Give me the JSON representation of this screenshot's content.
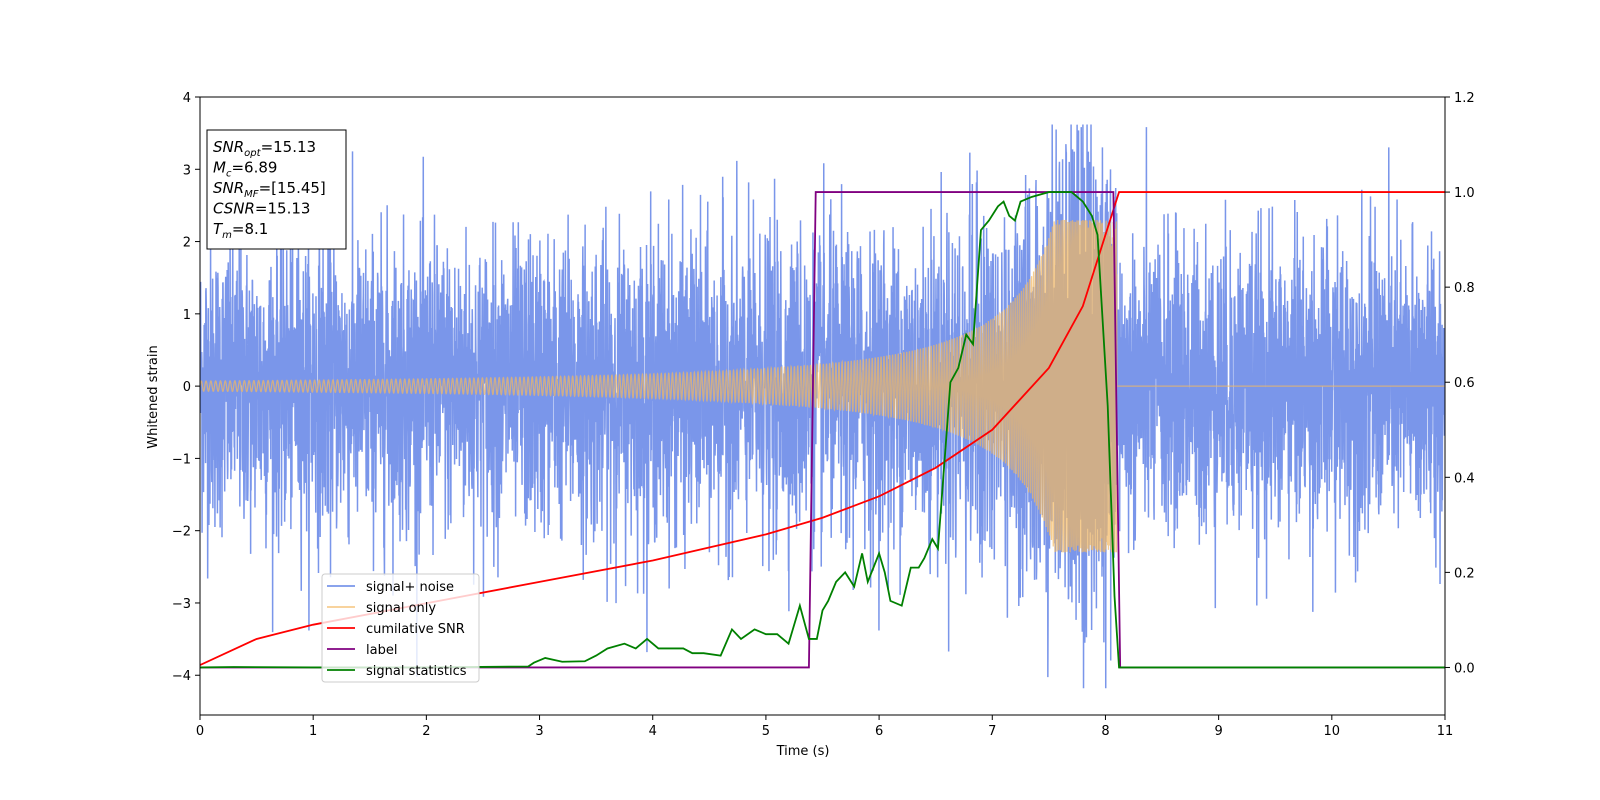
{
  "chart_data": {
    "type": "line",
    "xlabel": "Time (s)",
    "ylabel": "Whitened strain",
    "xlim": [
      0,
      11
    ],
    "ylim": [
      -4.55,
      4
    ],
    "y2lim": [
      -0.1,
      1.2
    ],
    "x_ticks": [
      0,
      1,
      2,
      3,
      4,
      5,
      6,
      7,
      8,
      9,
      10,
      11
    ],
    "y_ticks": [
      -4,
      -3,
      -2,
      -1,
      0,
      1,
      2,
      3,
      4
    ],
    "y2_ticks": [
      "0.0",
      "0.2",
      "0.4",
      "0.6",
      "0.8",
      "1.0",
      "1.2"
    ],
    "grid": false,
    "legend_position": "lower-left",
    "info_box": {
      "position": "top-left",
      "lines": [
        {
          "main": "SNR",
          "sub": "opt",
          "rest": "=15.13"
        },
        {
          "main": "M",
          "sub": "c",
          "rest": "=6.89"
        },
        {
          "main": "SNR",
          "sub": "MF",
          "rest": "=[15.45]"
        },
        {
          "main": "CSNR",
          "sub": "",
          "rest": "=15.13"
        },
        {
          "main": "T",
          "sub": "m",
          "rest": "=8.1"
        }
      ]
    },
    "series": [
      {
        "name": "signal+ noise",
        "axis": "left",
        "color": "#4169e1",
        "kind": "noise_plus_signal",
        "noise_sigma": 1.0,
        "envelope_max": 3.62,
        "envelope_min": -4.18
      },
      {
        "name": "signal only",
        "axis": "left",
        "color": "#f4b860",
        "kind": "chirp",
        "amplitude_start": 0.07,
        "amplitude_peak": 2.3,
        "merger_time": 8.1,
        "end_value": 0.0
      },
      {
        "name": "cumilative SNR",
        "axis": "right",
        "color": "#ff0000",
        "x": [
          0,
          0.5,
          1,
          2,
          3,
          4,
          5,
          5.5,
          6,
          6.5,
          7,
          7.5,
          7.8,
          8.0,
          8.1,
          8.12,
          11
        ],
        "y": [
          0.005,
          0.06,
          0.09,
          0.135,
          0.18,
          0.225,
          0.28,
          0.315,
          0.36,
          0.42,
          0.5,
          0.63,
          0.76,
          0.91,
          0.985,
          1.0,
          1.0
        ]
      },
      {
        "name": "label",
        "axis": "right",
        "color": "#800080",
        "x": [
          0,
          5.38,
          5.44,
          8.07,
          8.13,
          11
        ],
        "y": [
          0,
          0,
          1,
          1,
          0,
          0
        ]
      },
      {
        "name": "signal statistics",
        "axis": "right",
        "color": "#008000",
        "x": [
          0,
          0.3,
          1,
          2,
          2.9,
          2.95,
          3.05,
          3.2,
          3.4,
          3.5,
          3.6,
          3.75,
          3.85,
          3.95,
          4.05,
          4.2,
          4.27,
          4.35,
          4.45,
          4.6,
          4.7,
          4.78,
          4.9,
          5.0,
          5.1,
          5.2,
          5.3,
          5.38,
          5.45,
          5.5,
          5.55,
          5.62,
          5.7,
          5.78,
          5.85,
          5.9,
          5.95,
          6.0,
          6.05,
          6.1,
          6.2,
          6.28,
          6.35,
          6.4,
          6.47,
          6.52,
          6.58,
          6.63,
          6.7,
          6.77,
          6.83,
          6.9,
          6.97,
          7.05,
          7.1,
          7.15,
          7.2,
          7.25,
          7.35,
          7.5,
          7.6,
          7.7,
          7.8,
          7.88,
          7.93,
          7.97,
          8.02,
          8.08,
          8.12,
          11
        ],
        "y": [
          0,
          0.001,
          0.0,
          0.0,
          0.002,
          0.01,
          0.02,
          0.012,
          0.013,
          0.025,
          0.04,
          0.05,
          0.04,
          0.06,
          0.04,
          0.04,
          0.04,
          0.03,
          0.03,
          0.025,
          0.08,
          0.06,
          0.08,
          0.07,
          0.07,
          0.05,
          0.13,
          0.06,
          0.06,
          0.12,
          0.14,
          0.18,
          0.2,
          0.17,
          0.24,
          0.18,
          0.21,
          0.24,
          0.2,
          0.14,
          0.13,
          0.21,
          0.21,
          0.23,
          0.27,
          0.25,
          0.44,
          0.6,
          0.63,
          0.7,
          0.68,
          0.92,
          0.94,
          0.97,
          0.98,
          0.95,
          0.94,
          0.98,
          0.99,
          1.0,
          1.0,
          1.0,
          0.98,
          0.95,
          0.91,
          0.75,
          0.55,
          0.15,
          0.0,
          0.0
        ]
      }
    ]
  }
}
